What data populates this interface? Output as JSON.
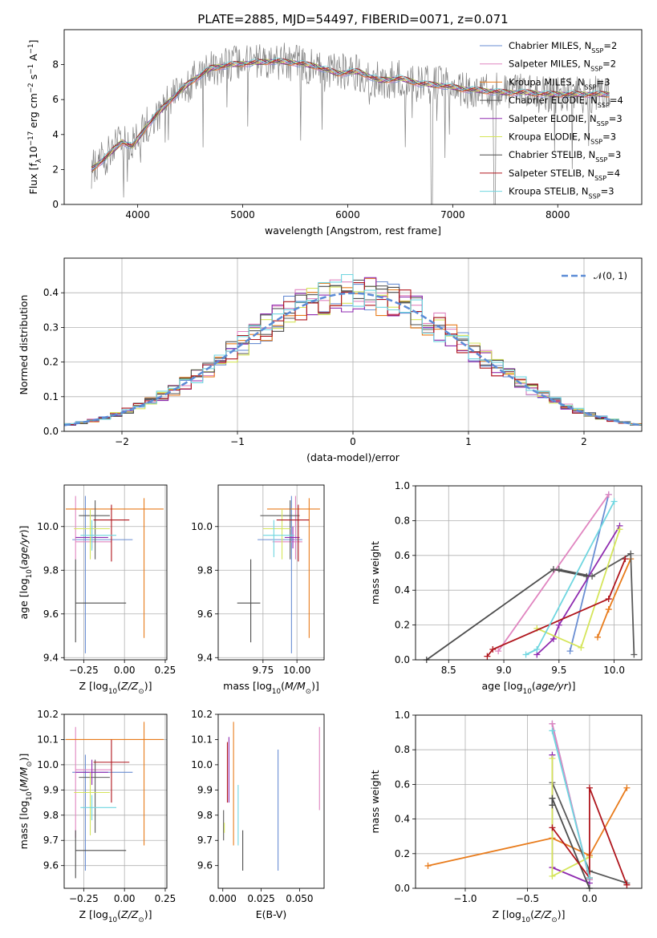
{
  "figure_title": "PLATE=2885, MJD=54497, FIBERID=0071, z=0.071",
  "colors": {
    "model_palette": [
      "#6a8ed3",
      "#e085c0",
      "#e87b1b",
      "#5a5a5a",
      "#8f2bb0",
      "#d5e55a",
      "#4d4d4d",
      "#b0161d",
      "#6fd6e0"
    ],
    "spectrum_data": "#808080",
    "normal_curve": "#5b8bd6",
    "grid": "#b0b0b0"
  },
  "chart_data": [
    {
      "id": "spectrum",
      "type": "line",
      "xlabel": "wavelength [Angstrom, rest frame]",
      "ylabel": "Flux [f_λ 10^-17 erg cm^-2 s^-1 A^-1]",
      "xlim": [
        3300,
        8800
      ],
      "ylim": [
        0,
        10
      ],
      "xticks": [
        4000,
        5000,
        6000,
        7000,
        8000
      ],
      "yticks": [
        0,
        2,
        4,
        6,
        8
      ],
      "grid": false,
      "legend_position": "top-right",
      "continuum_shape": {
        "x": [
          3560,
          3700,
          3850,
          3950,
          4100,
          4300,
          4500,
          4700,
          4900,
          5100,
          5300,
          5500,
          5700,
          5900,
          6100,
          6300,
          6500,
          6700,
          6900,
          7100,
          7300,
          7500,
          7700,
          7900,
          8100,
          8300,
          8500
        ],
        "y": [
          2.0,
          2.7,
          3.6,
          3.3,
          4.6,
          5.9,
          7.0,
          7.8,
          8.0,
          8.1,
          8.2,
          8.1,
          7.9,
          7.5,
          7.6,
          7.1,
          7.2,
          6.9,
          6.8,
          6.6,
          6.5,
          6.4,
          6.4,
          6.3,
          6.3,
          6.3,
          6.3
        ]
      },
      "series": [
        {
          "name": "Chabrier MILES, N_SSP=2"
        },
        {
          "name": "Salpeter MILES, N_SSP=2"
        },
        {
          "name": "Kroupa MILES, N_SSP=3"
        },
        {
          "name": "Chabrier ELODIE, N_SSP=4"
        },
        {
          "name": "Salpeter ELODIE, N_SSP=3"
        },
        {
          "name": "Kroupa ELODIE, N_SSP=3"
        },
        {
          "name": "Chabrier STELIB, N_SSP=3"
        },
        {
          "name": "Salpeter STELIB, N_SSP=4"
        },
        {
          "name": "Kroupa STELIB, N_SSP=3"
        }
      ]
    },
    {
      "id": "residual_histogram",
      "type": "line",
      "xlabel": "(data-model)/error",
      "ylabel": "Normed distribution",
      "xlim": [
        -2.5,
        2.5
      ],
      "ylim": [
        0,
        0.5
      ],
      "xticks": [
        -2,
        -1,
        0,
        1,
        2
      ],
      "yticks": [
        0.0,
        0.1,
        0.2,
        0.3,
        0.4
      ],
      "grid": true,
      "legend_position": "top-right",
      "reference_curve": {
        "name": "𝒩(0, 1)",
        "mean": 0,
        "sigma": 1
      },
      "bin_width": 0.1
    },
    {
      "id": "age_vs_Z",
      "type": "scatter",
      "xlabel": "Z [log10(Z/Z⊙)]",
      "ylabel": "age  [log10(age/yr)]",
      "xlim": [
        -0.37,
        0.26
      ],
      "ylim": [
        9.39,
        10.19
      ],
      "xticks": [
        -0.25,
        0.0,
        0.25
      ],
      "yticks": [
        9.4,
        9.6,
        9.8,
        10.0
      ],
      "grid": true,
      "points": [
        {
          "x": -0.24,
          "y": 9.94,
          "xerr": [
            0.08,
            0.29
          ],
          "yerr": [
            0.52,
            0.2
          ]
        },
        {
          "x": -0.3,
          "y": 9.93,
          "xerr": [
            0.0,
            0.22
          ],
          "yerr": [
            0.08,
            0.21
          ]
        },
        {
          "x": 0.12,
          "y": 10.08,
          "xerr": [
            0.48,
            0.12
          ],
          "yerr": [
            0.59,
            0.05
          ]
        },
        {
          "x": -0.18,
          "y": 10.05,
          "xerr": [
            0.1,
            0.09
          ],
          "yerr": [
            0.2,
            0.07
          ]
        },
        {
          "x": -0.2,
          "y": 9.95,
          "xerr": [
            0.1,
            0.1
          ],
          "yerr": [
            0.05,
            0.05
          ]
        },
        {
          "x": -0.21,
          "y": 9.99,
          "xerr": [
            0.1,
            0.12
          ],
          "yerr": [
            0.14,
            0.09
          ]
        },
        {
          "x": -0.3,
          "y": 9.65,
          "xerr": [
            0.0,
            0.31
          ],
          "yerr": [
            0.18,
            0.2
          ]
        },
        {
          "x": -0.08,
          "y": 10.03,
          "xerr": [
            0.11,
            0.11
          ],
          "yerr": [
            0.19,
            0.07
          ]
        },
        {
          "x": -0.2,
          "y": 9.96,
          "xerr": [
            0.07,
            0.15
          ],
          "yerr": [
            0.07,
            0.07
          ]
        }
      ]
    },
    {
      "id": "age_vs_mass",
      "type": "scatter",
      "xlabel": "mass [log10(M/M⊙)]",
      "ylabel": "",
      "xlim": [
        9.42,
        10.2
      ],
      "ylim": [
        9.39,
        10.19
      ],
      "xticks": [
        9.75,
        10.0
      ],
      "yticks": [
        9.4,
        9.6,
        9.8,
        10.0
      ],
      "grid": true,
      "points": [
        {
          "x": 9.96,
          "y": 9.94,
          "xerr": [
            0.25,
            0.08
          ],
          "yerr": [
            0.52,
            0.2
          ]
        },
        {
          "x": 9.99,
          "y": 9.93,
          "xerr": [
            0.17,
            0.05
          ],
          "yerr": [
            0.08,
            0.21
          ]
        },
        {
          "x": 10.09,
          "y": 10.08,
          "xerr": [
            0.31,
            0.08
          ],
          "yerr": [
            0.59,
            0.05
          ]
        },
        {
          "x": 9.95,
          "y": 10.05,
          "xerr": [
            0.22,
            0.07
          ],
          "yerr": [
            0.2,
            0.07
          ]
        },
        {
          "x": 9.97,
          "y": 9.95,
          "xerr": [
            0.06,
            0.05
          ],
          "yerr": [
            0.05,
            0.05
          ]
        },
        {
          "x": 9.89,
          "y": 9.99,
          "xerr": [
            0.14,
            0.06
          ],
          "yerr": [
            0.14,
            0.09
          ]
        },
        {
          "x": 9.66,
          "y": 9.65,
          "xerr": [
            0.1,
            0.07
          ],
          "yerr": [
            0.18,
            0.2
          ]
        },
        {
          "x": 10.01,
          "y": 10.03,
          "xerr": [
            0.16,
            0.08
          ],
          "yerr": [
            0.19,
            0.07
          ]
        },
        {
          "x": 9.83,
          "y": 9.96,
          "xerr": [
            0.08,
            0.15
          ],
          "yerr": [
            0.1,
            0.07
          ]
        }
      ]
    },
    {
      "id": "weight_vs_age",
      "type": "line",
      "xlabel": "age  [log10(age/yr)]",
      "ylabel": "mass weight",
      "xlim": [
        8.2,
        10.25
      ],
      "ylim": [
        0,
        1.0
      ],
      "xticks": [
        8.5,
        9.0,
        9.5,
        10.0
      ],
      "yticks": [
        0.0,
        0.2,
        0.4,
        0.6,
        0.8,
        1.0
      ],
      "grid": true,
      "series": [
        {
          "x": [
            9.6,
            9.95
          ],
          "y": [
            0.05,
            0.95
          ]
        },
        {
          "x": [
            8.95,
            9.95
          ],
          "y": [
            0.05,
            0.95
          ]
        },
        {
          "x": [
            9.85,
            9.95,
            10.15
          ],
          "y": [
            0.13,
            0.29,
            0.58
          ]
        },
        {
          "x": [
            9.5,
            9.8,
            10.15,
            10.18
          ],
          "y": [
            0.52,
            0.48,
            0.61,
            0.03
          ]
        },
        {
          "x": [
            9.3,
            9.45,
            9.5,
            10.05
          ],
          "y": [
            0.03,
            0.12,
            0.2,
            0.77
          ]
        },
        {
          "x": [
            9.3,
            9.7,
            10.05
          ],
          "y": [
            0.18,
            0.07,
            0.75
          ]
        },
        {
          "x": [
            8.3,
            9.45,
            9.75
          ],
          "y": [
            0.0,
            0.52,
            0.48
          ]
        },
        {
          "x": [
            8.85,
            8.9,
            9.95,
            10.1
          ],
          "y": [
            0.02,
            0.06,
            0.35,
            0.58
          ]
        },
        {
          "x": [
            9.2,
            9.3,
            10.0
          ],
          "y": [
            0.03,
            0.06,
            0.91
          ]
        }
      ]
    },
    {
      "id": "mass_vs_Z",
      "type": "scatter",
      "xlabel": "Z [log10(Z/Z⊙)]",
      "ylabel": "mass [log10(M/M⊙)]",
      "xlim": [
        -0.37,
        0.26
      ],
      "ylim": [
        9.51,
        10.2
      ],
      "xticks": [
        -0.25,
        0.0,
        0.25
      ],
      "yticks": [
        9.6,
        9.7,
        9.8,
        9.9,
        10.0,
        10.1,
        10.2
      ],
      "grid": true,
      "points": [
        {
          "x": -0.24,
          "y": 9.97,
          "xerr": [
            0.08,
            0.29
          ],
          "yerr": [
            0.39,
            0.07
          ]
        },
        {
          "x": -0.3,
          "y": 9.98,
          "xerr": [
            0.0,
            0.22
          ],
          "yerr": [
            0.27,
            0.17
          ]
        },
        {
          "x": 0.12,
          "y": 10.1,
          "xerr": [
            0.48,
            0.12
          ],
          "yerr": [
            0.42,
            0.07
          ]
        },
        {
          "x": -0.18,
          "y": 9.95,
          "xerr": [
            0.1,
            0.09
          ],
          "yerr": [
            0.22,
            0.07
          ]
        },
        {
          "x": -0.2,
          "y": 9.97,
          "xerr": [
            0.1,
            0.1
          ],
          "yerr": [
            0.05,
            0.05
          ]
        },
        {
          "x": -0.21,
          "y": 9.89,
          "xerr": [
            0.1,
            0.12
          ],
          "yerr": [
            0.17,
            0.08
          ]
        },
        {
          "x": -0.3,
          "y": 9.66,
          "xerr": [
            0.0,
            0.31
          ],
          "yerr": [
            0.11,
            0.08
          ]
        },
        {
          "x": -0.08,
          "y": 10.01,
          "xerr": [
            0.11,
            0.11
          ],
          "yerr": [
            0.16,
            0.09
          ]
        },
        {
          "x": -0.2,
          "y": 9.83,
          "xerr": [
            0.07,
            0.15
          ],
          "yerr": [
            0.05,
            0.05
          ]
        }
      ]
    },
    {
      "id": "mass_vs_ebv",
      "type": "scatter",
      "xlabel": "E(B-V)",
      "ylabel": "",
      "xlim": [
        -0.003,
        0.066
      ],
      "ylim": [
        9.51,
        10.2
      ],
      "xticks": [
        0.0,
        0.025,
        0.05
      ],
      "yticks": [
        9.6,
        9.7,
        9.8,
        9.9,
        10.0,
        10.1,
        10.2
      ],
      "grid": false,
      "points": [
        {
          "x": 0.036,
          "y": 9.82,
          "xerr": [
            0,
            0
          ],
          "yerr": [
            0.24,
            0.24
          ]
        },
        {
          "x": 0.063,
          "y": 9.98,
          "xerr": [
            0,
            0
          ],
          "yerr": [
            0.16,
            0.17
          ]
        },
        {
          "x": 0.007,
          "y": 9.92,
          "xerr": [
            0,
            0
          ],
          "yerr": [
            0.24,
            0.25
          ]
        },
        {
          "x": 0.0005,
          "y": 9.76,
          "xerr": [
            0,
            0
          ],
          "yerr": [
            0.06,
            0.06
          ]
        },
        {
          "x": 0.004,
          "y": 9.98,
          "xerr": [
            0,
            0
          ],
          "yerr": [
            0.13,
            0.13
          ]
        },
        {
          "x": 0.001,
          "y": 9.75,
          "xerr": [
            0,
            0
          ],
          "yerr": [
            0.02,
            0.02
          ]
        },
        {
          "x": 0.013,
          "y": 9.66,
          "xerr": [
            0,
            0
          ],
          "yerr": [
            0.08,
            0.08
          ]
        },
        {
          "x": 0.003,
          "y": 9.97,
          "xerr": [
            0,
            0
          ],
          "yerr": [
            0.12,
            0.12
          ]
        },
        {
          "x": 0.01,
          "y": 9.8,
          "xerr": [
            0,
            0
          ],
          "yerr": [
            0.12,
            0.12
          ]
        }
      ]
    },
    {
      "id": "weight_vs_Z",
      "type": "line",
      "xlabel": "Z [log10(Z/Z⊙)]",
      "ylabel": "mass weight",
      "xlim": [
        -1.4,
        0.42
      ],
      "ylim": [
        0,
        1.0
      ],
      "xticks": [
        -1.0,
        -0.5,
        0.0
      ],
      "yticks": [
        0.0,
        0.2,
        0.4,
        0.6,
        0.8,
        1.0
      ],
      "grid": true,
      "series": [
        {
          "x": [
            -0.3,
            0.0
          ],
          "y": [
            0.95,
            0.05
          ]
        },
        {
          "x": [
            -0.3,
            0.0
          ],
          "y": [
            0.95,
            0.05
          ]
        },
        {
          "x": [
            -1.3,
            -0.3,
            0.0,
            0.3
          ],
          "y": [
            0.13,
            0.29,
            0.19,
            0.58
          ]
        },
        {
          "x": [
            -0.3,
            -0.3,
            0.0,
            0.3
          ],
          "y": [
            0.52,
            0.61,
            0.1,
            0.03
          ]
        },
        {
          "x": [
            -0.3,
            -0.3,
            0.0
          ],
          "y": [
            0.77,
            0.12,
            0.03
          ]
        },
        {
          "x": [
            -0.3,
            -0.3,
            0.0
          ],
          "y": [
            0.75,
            0.07,
            0.18
          ]
        },
        {
          "x": [
            -0.3,
            -0.3,
            0.0
          ],
          "y": [
            0.48,
            0.52,
            0.0
          ]
        },
        {
          "x": [
            -0.3,
            0.0,
            0.0,
            0.3
          ],
          "y": [
            0.35,
            0.06,
            0.58,
            0.02
          ]
        },
        {
          "x": [
            -0.3,
            0.0
          ],
          "y": [
            0.91,
            0.06
          ]
        }
      ]
    }
  ]
}
